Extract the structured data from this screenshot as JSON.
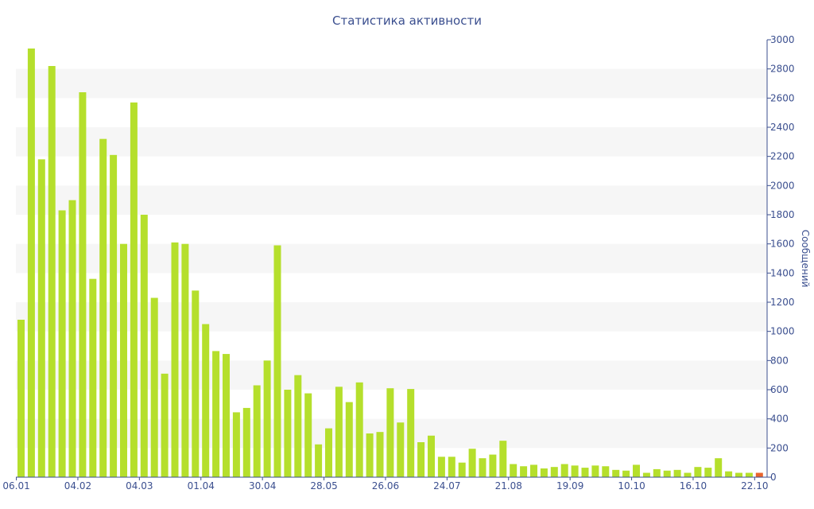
{
  "chart_data": {
    "type": "bar",
    "title": "Статистика активности",
    "ylabel": "Сообщений",
    "xlabel": "",
    "ylim": [
      0,
      3000
    ],
    "yticks": [
      0,
      200,
      400,
      600,
      800,
      1000,
      1200,
      1400,
      1600,
      1800,
      2000,
      2200,
      2400,
      2600,
      2800,
      3000
    ],
    "y_axis_side": "right",
    "grid": "alternating horizontal bands",
    "xtick_labels": [
      {
        "label": "06.01",
        "index": 0
      },
      {
        "label": "04.02",
        "index": 6
      },
      {
        "label": "04.03",
        "index": 12
      },
      {
        "label": "01.04",
        "index": 18
      },
      {
        "label": "30.04",
        "index": 24
      },
      {
        "label": "28.05",
        "index": 30
      },
      {
        "label": "26.06",
        "index": 36
      },
      {
        "label": "24.07",
        "index": 42
      },
      {
        "label": "21.08",
        "index": 48
      },
      {
        "label": "19.09",
        "index": 54
      },
      {
        "label": "10.10",
        "index": 60
      },
      {
        "label": "16.10",
        "index": 66
      },
      {
        "label": "22.10",
        "index": 72
      }
    ],
    "values": [
      1080,
      2940,
      2180,
      2820,
      1830,
      1900,
      2640,
      1360,
      2320,
      2210,
      1600,
      2570,
      1800,
      1230,
      710,
      1610,
      1600,
      1280,
      1050,
      865,
      845,
      445,
      475,
      630,
      800,
      1590,
      600,
      700,
      575,
      225,
      335,
      620,
      515,
      650,
      300,
      310,
      610,
      375,
      605,
      240,
      285,
      140,
      140,
      100,
      195,
      130,
      155,
      250,
      90,
      75,
      85,
      60,
      70,
      90,
      80,
      65,
      80,
      75,
      50,
      45,
      85,
      30,
      55,
      45,
      50,
      30,
      70,
      65,
      130,
      40,
      30,
      30,
      30
    ],
    "bar_color": "#b5df2c",
    "highlight_index": 72,
    "highlight_color": "#e8642c"
  }
}
